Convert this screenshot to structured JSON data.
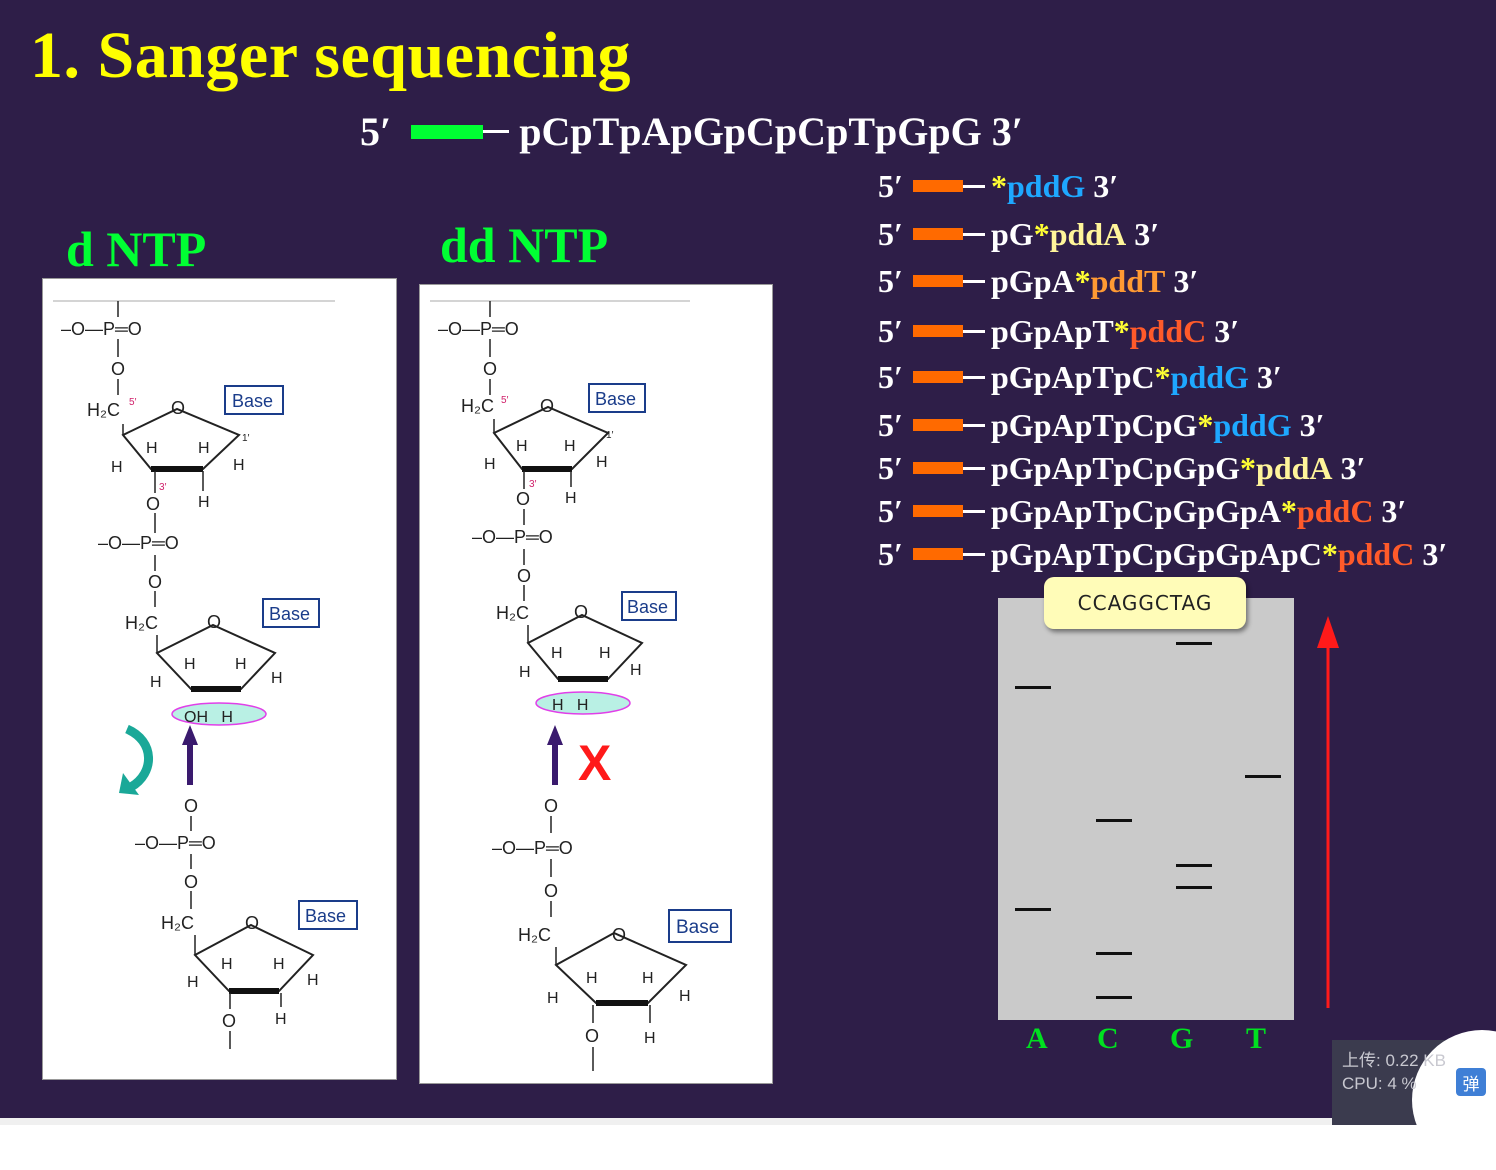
{
  "title": "1. Sanger sequencing",
  "template_strand": {
    "five": "5′",
    "sequence": "pCpTpApGpCpCpTpGpG 3′"
  },
  "labels": {
    "dntp": "d NTP",
    "ddntp": "dd NTP",
    "h2o_h": "H",
    "h2o_sub": "2",
    "h2o_o": "O",
    "blocked": "X"
  },
  "structure": {
    "phosphate": "–O—P═O",
    "o": "O",
    "h": "H",
    "h2c": "H₂C",
    "base": "Base",
    "pos5": "5′",
    "pos3": "3′",
    "pos1": "1′",
    "oh_h": "OH   H",
    "h_h": "H   H"
  },
  "fragments": [
    {
      "five": "5′",
      "prefix": "",
      "star": "*",
      "dd": "pddG",
      "dd_color": "#1ea8ff",
      "end": "3′"
    },
    {
      "five": "5′",
      "prefix": "pG",
      "star": "*",
      "dd": "pddA",
      "dd_color": "#fff59a",
      "end": "3′"
    },
    {
      "five": "5′",
      "prefix": "pGpA",
      "star": "*",
      "dd": "pddT",
      "dd_color": "#ff9a33",
      "end": "3′"
    },
    {
      "five": "5′",
      "prefix": "pGpApT",
      "star": "*",
      "dd": "pddC",
      "dd_color": "#ff5a2a",
      "end": "3′"
    },
    {
      "five": "5′",
      "prefix": "pGpApTpC",
      "star": "*",
      "dd": "pddG",
      "dd_color": "#1ea8ff",
      "end": "3′"
    },
    {
      "five": "5′",
      "prefix": "pGpApTpCpG",
      "star": "*",
      "dd": "pddG",
      "dd_color": "#1ea8ff",
      "end": "3′"
    },
    {
      "five": "5′",
      "prefix": "pGpApTpCpGpG",
      "star": "*",
      "dd": "pddA",
      "dd_color": "#fff59a",
      "end": "3′"
    },
    {
      "five": "5′",
      "prefix": "pGpApTpCpGpGpA",
      "star": "*",
      "dd": "pddC",
      "dd_color": "#ff5a2a",
      "end": "3′"
    },
    {
      "five": "5′",
      "prefix": "pGpApTpCpGpGpApC",
      "star": "*",
      "dd": "pddC",
      "dd_color": "#ff5a2a",
      "end": "3′"
    }
  ],
  "gel": {
    "read_sequence": "CCAGGCTAG",
    "lanes": [
      "A",
      "C",
      "G",
      "T"
    ],
    "bands": [
      {
        "lane": "A",
        "order": 7
      },
      {
        "lane": "A",
        "order": 2
      },
      {
        "lane": "C",
        "order": 4
      },
      {
        "lane": "C",
        "order": 1
      },
      {
        "lane": "C",
        "order": 0
      },
      {
        "lane": "G",
        "order": 8
      },
      {
        "lane": "G",
        "order": 3
      },
      {
        "lane": "G",
        "order": 2.5
      },
      {
        "lane": "T",
        "order": 5
      }
    ],
    "arrow_color": "#ff1a1a"
  },
  "overlay": {
    "upload": "上传: 0.22 KB",
    "cpu": "CPU: 4 %",
    "button": "弹"
  },
  "colors": {
    "background": "#2e1e48",
    "title": "#ffff00",
    "ntp_label": "#00ff33",
    "primer_template": "#00ff33",
    "primer_fragment": "#ff6a00",
    "star": "#ffff33"
  }
}
